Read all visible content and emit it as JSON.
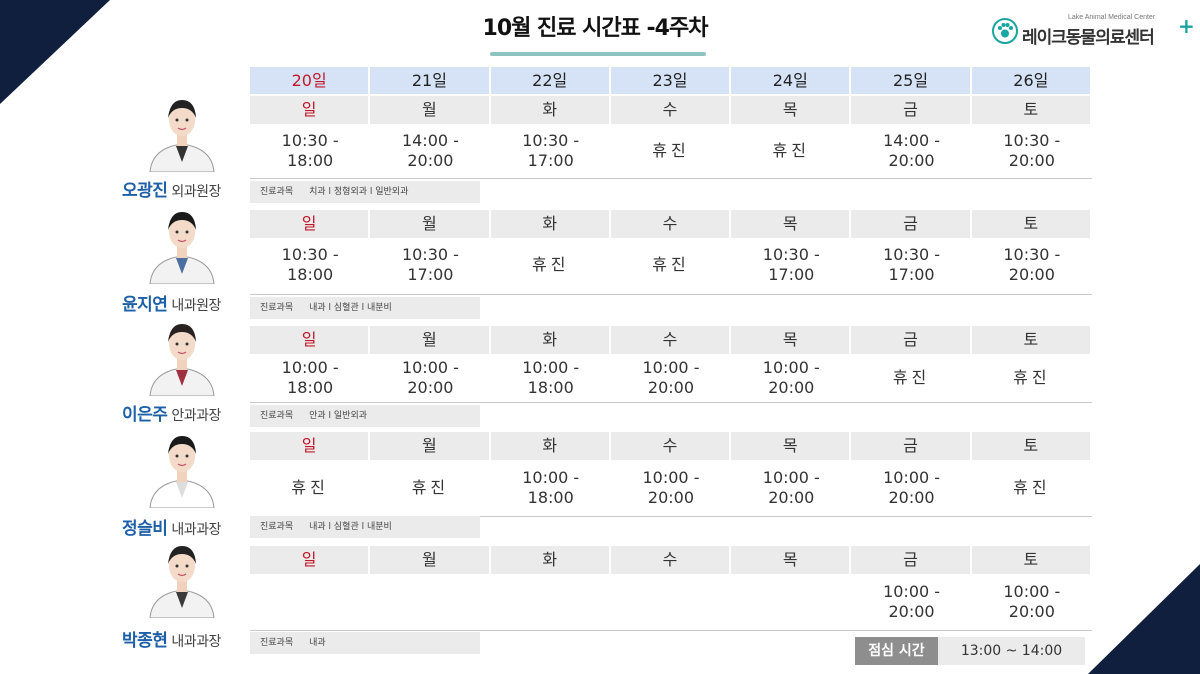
{
  "title": "10월 진료 시간표 -4주차",
  "logo": {
    "sub": "Lake Animal Medical Center",
    "name": "레이크동물의료센터",
    "plus": "+"
  },
  "dates": [
    "20일",
    "21일",
    "22일",
    "23일",
    "24일",
    "25일",
    "26일"
  ],
  "weekdays": [
    "일",
    "월",
    "화",
    "수",
    "목",
    "금",
    "토"
  ],
  "dept_label": "진료과목",
  "doctors": [
    {
      "name": "오광진",
      "title": "외과원장",
      "hours": [
        "10:30 -\n18:00",
        "14:00 -\n20:00",
        "10:30 -\n17:00",
        "휴진",
        "휴진",
        "14:00 -\n20:00",
        "10:30 -\n20:00"
      ],
      "departments": "치과 l 정형외과 l 일반외과"
    },
    {
      "name": "윤지연",
      "title": "내과원장",
      "hours": [
        "10:30 -\n18:00",
        "10:30 -\n17:00",
        "휴진",
        "휴진",
        "10:30 -\n17:00",
        "10:30 -\n17:00",
        "10:30 -\n20:00"
      ],
      "departments": "내과 l 심혈관 l 내분비"
    },
    {
      "name": "이은주",
      "title": "안과과장",
      "hours": [
        "10:00 -\n18:00",
        "10:00 -\n20:00",
        "10:00 -\n18:00",
        "10:00 -\n20:00",
        "10:00 -\n20:00",
        "휴진",
        "휴진"
      ],
      "departments": "안과 l 일반외과"
    },
    {
      "name": "정슬비",
      "title": "내과과장",
      "hours": [
        "휴진",
        "휴진",
        "10:00 -\n18:00",
        "10:00 -\n20:00",
        "10:00 -\n20:00",
        "10:00 -\n20:00",
        "휴진"
      ],
      "departments": "내과 l 심혈관 l 내분비"
    },
    {
      "name": "박종현",
      "title": "내과과장",
      "hours": [
        "",
        "",
        "",
        "",
        "",
        "10:00 -\n20:00",
        "10:00 -\n20:00"
      ],
      "departments": "내과"
    }
  ],
  "lunch": {
    "label": "점심 시간",
    "time": "13:00 ~ 14:00"
  },
  "colors": {
    "navy": "#0f1f3d",
    "sunday_red": "#c0182b",
    "name_blue": "#1e60a8",
    "header_blue": "#d6e3f6",
    "teal": "#1aa6a0"
  }
}
